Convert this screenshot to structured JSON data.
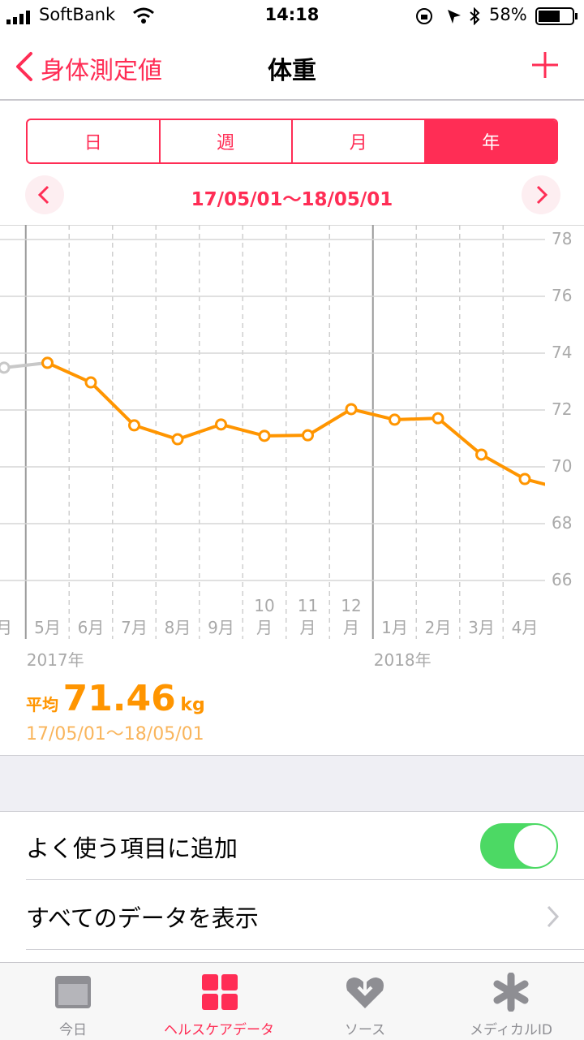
{
  "status_bar": {
    "carrier": "SoftBank",
    "time": "14:18",
    "battery": "58%"
  },
  "nav": {
    "back": "身体測定値",
    "title": "体重"
  },
  "segments": [
    "日",
    "週",
    "月",
    "年"
  ],
  "range": "17/05/01〜18/05/01",
  "chart_data": {
    "type": "line",
    "categories": [
      "月",
      "5月",
      "6月",
      "7月",
      "8月",
      "9月",
      "10月",
      "11月",
      "12月",
      "1月",
      "2月",
      "3月",
      "4月",
      null
    ],
    "year_labels": [
      "2017年",
      "2018年"
    ],
    "series": [
      {
        "color": "#c8c8c8",
        "values": [
          73.49,
          73.66,
          null,
          null,
          null,
          null,
          null,
          null,
          null,
          null,
          null,
          null,
          null,
          null
        ]
      },
      {
        "color": "#ff9500",
        "values": [
          null,
          73.66,
          72.97,
          71.46,
          70.97,
          71.49,
          71.09,
          71.11,
          72.03,
          71.66,
          71.71,
          70.43,
          69.57,
          69.17
        ]
      }
    ],
    "ylim": [
      66,
      78
    ],
    "yticks": [
      66,
      68,
      70,
      72,
      74,
      76,
      78
    ],
    "grid": true
  },
  "summary": {
    "label": "平均",
    "value": "71.46",
    "unit": "kg",
    "range": "17/05/01〜18/05/01"
  },
  "list": [
    "よく使う項目に追加",
    "すべてのデータを表示"
  ],
  "tabs": [
    "今日",
    "ヘルスケアデータ",
    "ソース",
    "メディカルID"
  ]
}
